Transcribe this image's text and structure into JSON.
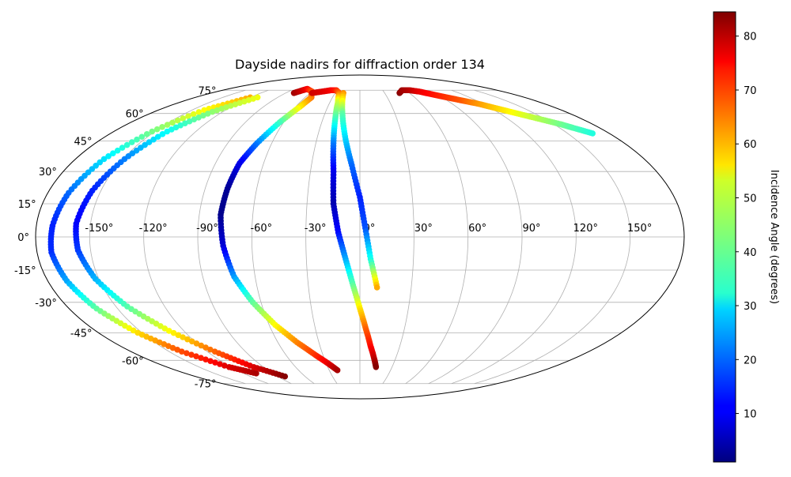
{
  "chart_data": {
    "type": "scatter",
    "projection": "mollweide",
    "title": "Dayside nadirs for diffraction order 134",
    "grid": true,
    "lon_ticks": [
      -150,
      -120,
      -90,
      -60,
      -30,
      0,
      30,
      60,
      90,
      120,
      150
    ],
    "lat_ticks": [
      75,
      60,
      45,
      30,
      15,
      0,
      -15,
      -30,
      -45,
      -60,
      -75
    ],
    "lon_tick_labels": [
      "-150°",
      "-120°",
      "-90°",
      "-60°",
      "-30°",
      "0°",
      "30°",
      "60°",
      "90°",
      "120°",
      "150°"
    ],
    "lat_tick_labels": [
      "75°",
      "60°",
      "45°",
      "30°",
      "15°",
      "0°",
      "-15°",
      "-30°",
      "-45°",
      "-60°",
      "-75°"
    ],
    "colorbar": {
      "label": "Incidence Angle (degrees)",
      "colormap": "jet",
      "range": [
        1,
        84.5
      ],
      "ticks": [
        10,
        20,
        30,
        40,
        50,
        60,
        70,
        80
      ],
      "tick_labels": [
        "10",
        "20",
        "30",
        "40",
        "50",
        "60",
        "70",
        "80"
      ]
    },
    "series": [
      {
        "lon": [
          -120,
          -139,
          -152,
          -162,
          -168,
          -171,
          -172,
          -169,
          -163,
          -153,
          -140,
          -122,
          -107
        ],
        "lat": [
          70,
          62,
          50,
          36,
          20,
          5,
          -7,
          -20,
          -33,
          -45,
          -55,
          -64,
          -68
        ],
        "incidence": [
          60,
          53,
          42,
          30,
          20,
          14,
          15,
          25,
          40,
          56,
          68,
          77,
          81
        ]
      },
      {
        "lon": [
          -112,
          -129,
          -141,
          -149,
          -155,
          -158,
          -157,
          -152,
          -143,
          -130,
          -114,
          -99,
          -82
        ],
        "lat": [
          70,
          61,
          50,
          36,
          21,
          6,
          -6,
          -19,
          -32,
          -44,
          -55,
          -64,
          -70
        ],
        "incidence": [
          52,
          44,
          33,
          22,
          14,
          11,
          16,
          26,
          39,
          53,
          66,
          77,
          84
        ]
      },
      {
        "lon": [
          -80,
          -75,
          -72,
          -60,
          -53,
          -56,
          -63,
          -70,
          -75,
          -77,
          -78,
          -76,
          -72,
          -65,
          -56,
          -46,
          -36,
          -28,
          -22
        ],
        "lat": [
          73,
          75,
          76,
          74,
          70,
          64,
          55,
          44,
          34,
          22,
          10,
          -4,
          -18,
          -30,
          -41,
          -50,
          -57,
          -62,
          -66
        ],
        "incidence": [
          82,
          78,
          75,
          68,
          65,
          55,
          38,
          22,
          10,
          3,
          2,
          8,
          24,
          40,
          53,
          63,
          70,
          76,
          81
        ]
      },
      {
        "lon": [
          -58,
          -48,
          -38,
          -31,
          -25,
          -22,
          -20,
          -18,
          -16,
          -15
        ],
        "lat": [
          73,
          74,
          75,
          75,
          73,
          67,
          57,
          44,
          30,
          15
        ],
        "incidence": [
          78,
          77,
          75,
          72,
          66,
          50,
          38,
          22,
          10,
          5
        ]
      },
      {
        "lon": [
          -20,
          -15,
          -10,
          -5,
          0,
          3,
          6,
          10
        ],
        "lat": [
          73,
          60,
          46,
          33,
          18,
          4,
          -10,
          -23
        ],
        "incidence": [
          62,
          40,
          29,
          20,
          14,
          18,
          34,
          60
        ]
      },
      {
        "lon": [
          -15,
          -12,
          -8,
          -4,
          0,
          4,
          8,
          12,
          15
        ],
        "lat": [
          15,
          2,
          -10,
          -22,
          -33,
          -43,
          -52,
          -59,
          -64
        ],
        "incidence": [
          5,
          12,
          25,
          40,
          55,
          66,
          73,
          79,
          84
        ]
      },
      {
        "lon": [
          48,
          55,
          65,
          75,
          85,
          95,
          105,
          115,
          125,
          135,
          145,
          155,
          160,
          168
        ],
        "lat": [
          73,
          75,
          75,
          74,
          72,
          70,
          68,
          66,
          63,
          60,
          57,
          54,
          52,
          49
        ],
        "incidence": [
          84,
          82,
          80,
          76,
          73,
          70,
          67,
          62,
          57,
          52,
          47,
          42,
          39,
          35
        ]
      }
    ]
  }
}
